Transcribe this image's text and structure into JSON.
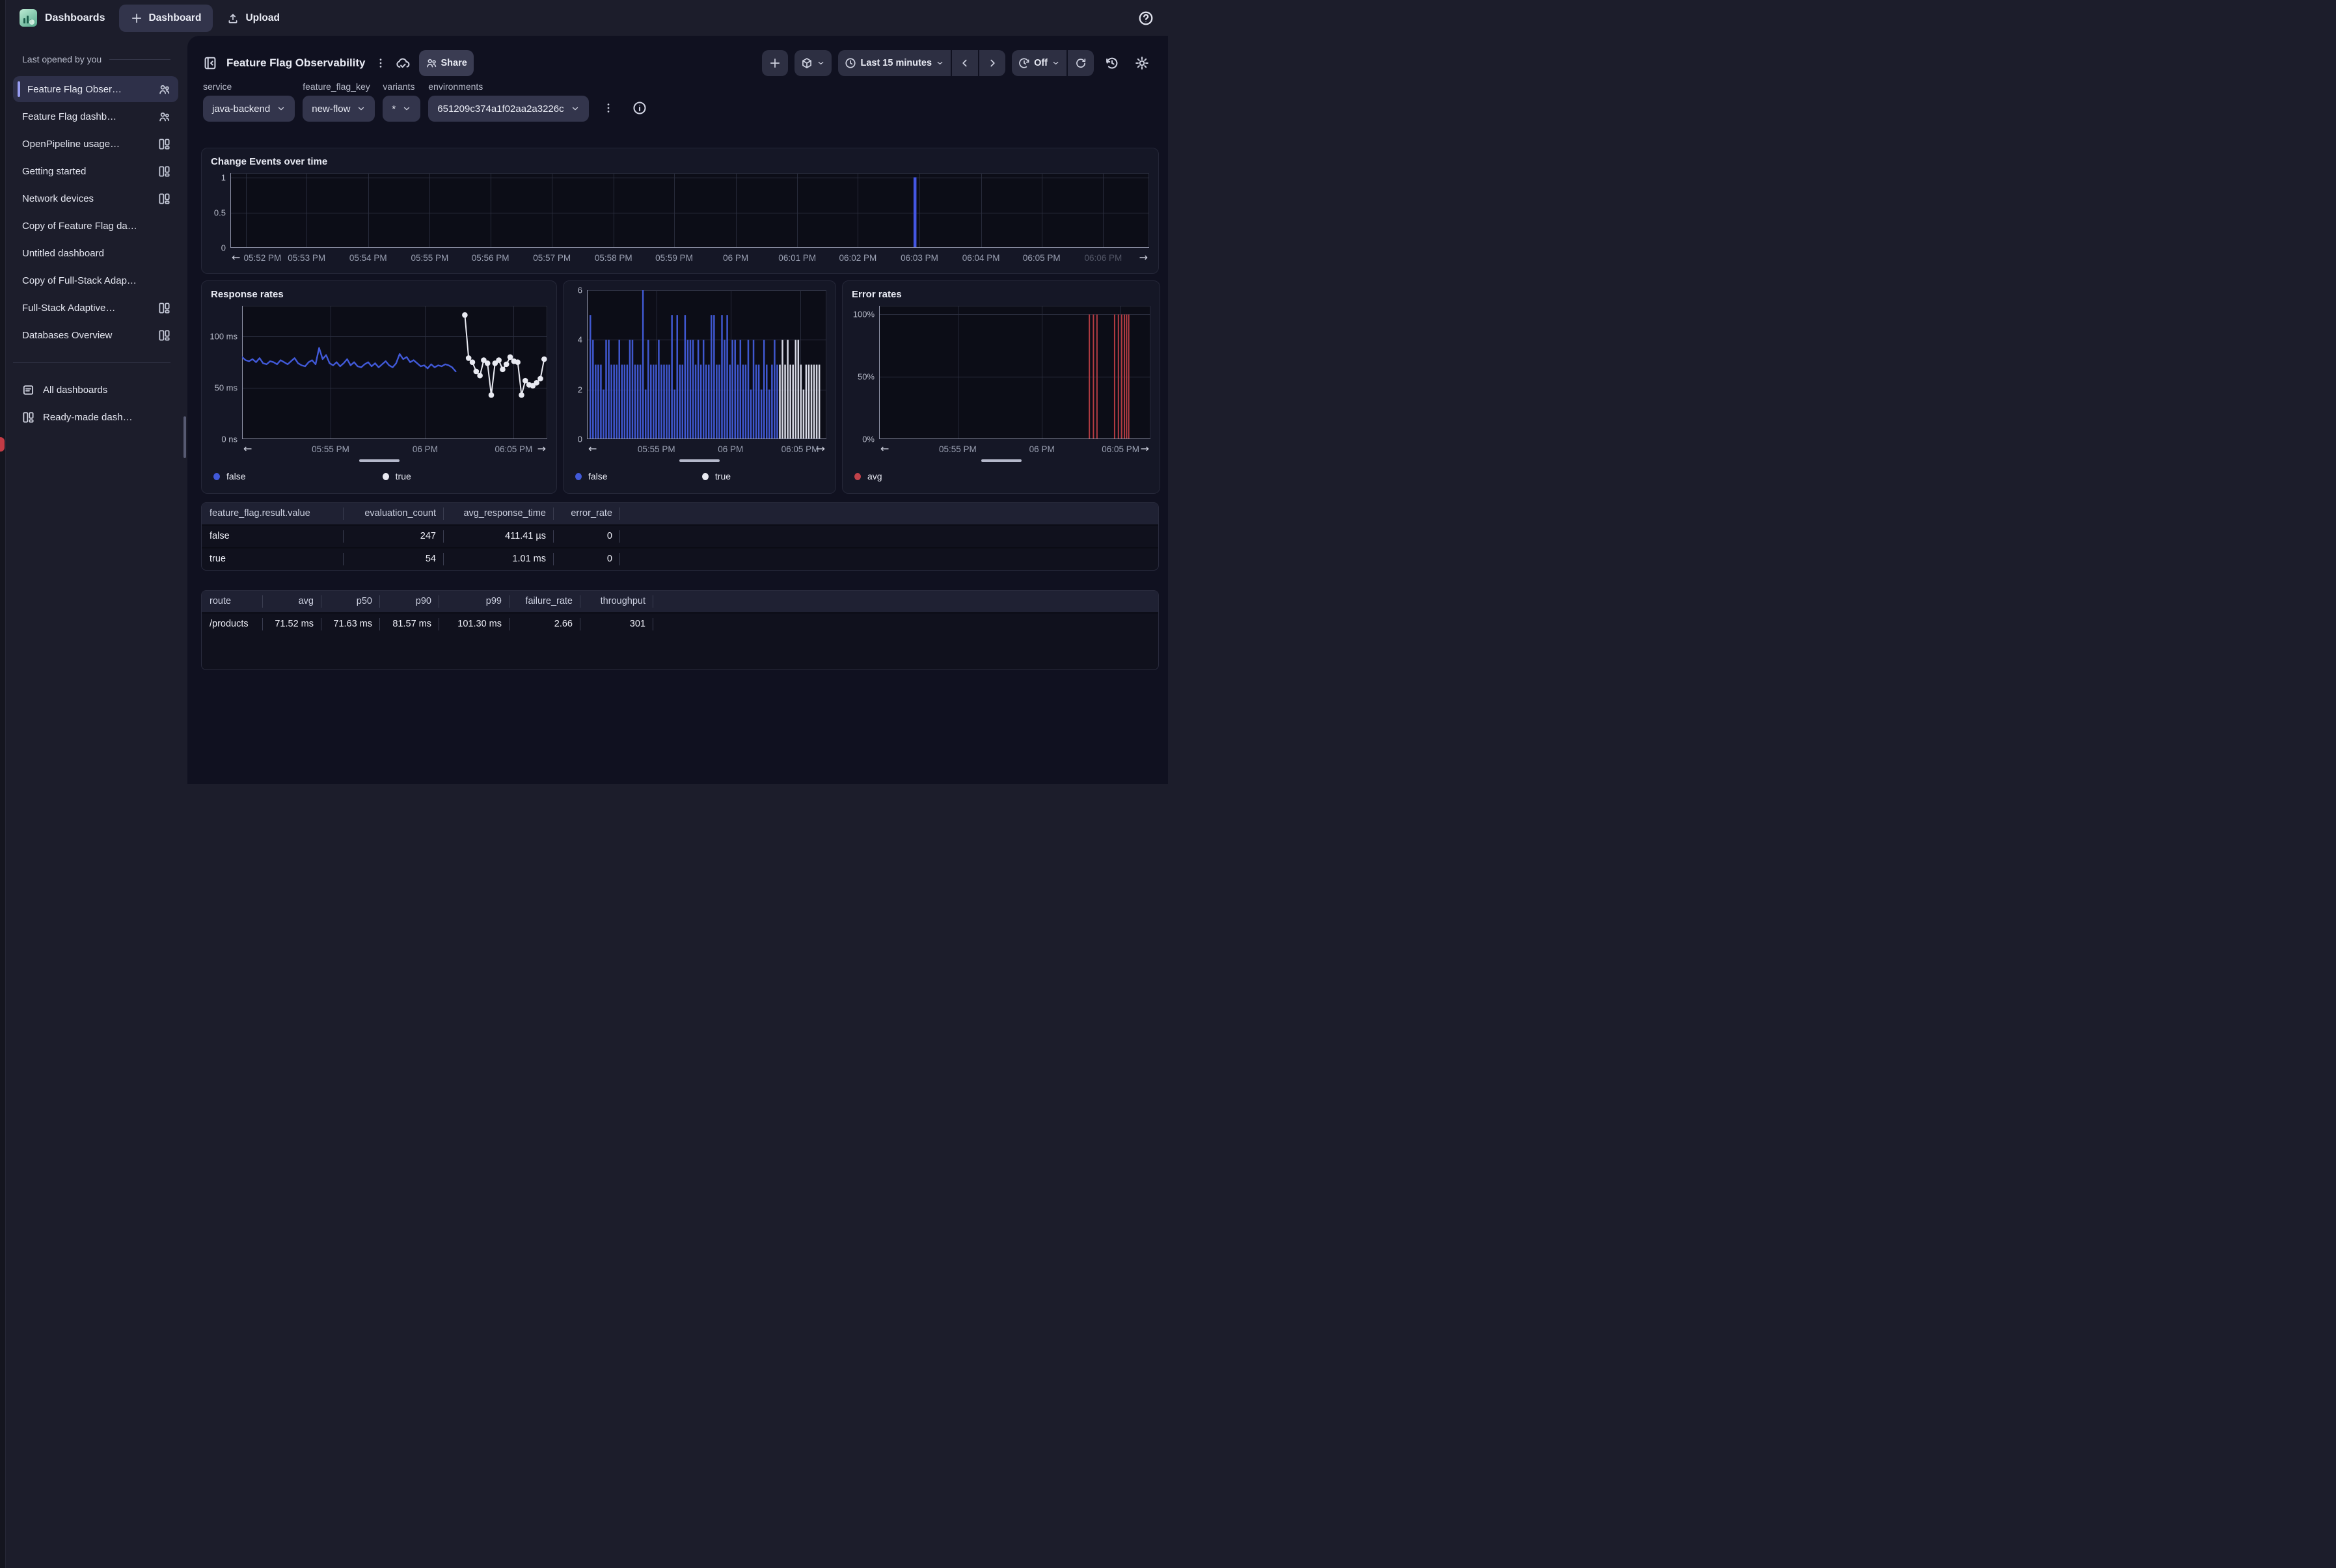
{
  "topbar": {
    "app": "Dashboards",
    "new_dashboard": "Dashboard",
    "upload": "Upload"
  },
  "sidebar": {
    "section": "Last opened by you",
    "items": [
      {
        "label": "Feature Flag Obser…",
        "icon": "people",
        "selected": true
      },
      {
        "label": "Feature Flag dashb…",
        "icon": "people",
        "selected": false
      },
      {
        "label": "OpenPipeline usage…",
        "icon": "layout",
        "selected": false
      },
      {
        "label": "Getting started",
        "icon": "layout",
        "selected": false
      },
      {
        "label": "Network devices",
        "icon": "layout",
        "selected": false
      },
      {
        "label": "Copy of Feature Flag da…",
        "icon": null,
        "selected": false
      },
      {
        "label": "Untitled dashboard",
        "icon": null,
        "selected": false
      },
      {
        "label": "Copy of Full-Stack Adap…",
        "icon": null,
        "selected": false
      },
      {
        "label": "Full-Stack Adaptive…",
        "icon": "layout",
        "selected": false
      },
      {
        "label": "Databases Overview",
        "icon": "layout",
        "selected": false
      }
    ],
    "footer": [
      {
        "label": "All dashboards",
        "icon": "doc"
      },
      {
        "label": "Ready-made dash…",
        "icon": "layout"
      }
    ]
  },
  "header": {
    "title": "Feature Flag Observability",
    "share": "Share",
    "time_range": "Last 15 minutes",
    "auto_refresh": "Off"
  },
  "filters": {
    "items": [
      {
        "label": "service",
        "value": "java-backend"
      },
      {
        "label": "feature_flag_key",
        "value": "new-flow"
      },
      {
        "label": "variants",
        "value": "*"
      },
      {
        "label": "environments",
        "value": "651209c374a1f02aa2a3226c"
      }
    ]
  },
  "panels": {
    "change_events": {
      "chart_data": {
        "type": "bar",
        "title": "Change Events over time",
        "ymax": 1.06,
        "yticks": [
          {
            "label": "1",
            "value": 1
          },
          {
            "label": "0.5",
            "value": 0.5
          },
          {
            "label": "0",
            "value": 0
          }
        ],
        "grid_x": [
          0.017,
          0.083,
          0.15,
          0.217,
          0.283,
          0.35,
          0.417,
          0.483,
          0.55,
          0.617,
          0.683,
          0.75,
          0.817,
          0.883,
          0.95
        ],
        "xticks": [
          {
            "label": "05:52 PM",
            "pos": 0.035
          },
          {
            "label": "05:53 PM",
            "pos": 0.083
          },
          {
            "label": "05:54 PM",
            "pos": 0.15
          },
          {
            "label": "05:55 PM",
            "pos": 0.217
          },
          {
            "label": "05:56 PM",
            "pos": 0.283
          },
          {
            "label": "05:57 PM",
            "pos": 0.35
          },
          {
            "label": "05:58 PM",
            "pos": 0.417
          },
          {
            "label": "05:59 PM",
            "pos": 0.483
          },
          {
            "label": "06 PM",
            "pos": 0.55
          },
          {
            "label": "06:01 PM",
            "pos": 0.617
          },
          {
            "label": "06:02 PM",
            "pos": 0.683
          },
          {
            "label": "06:03 PM",
            "pos": 0.75
          },
          {
            "label": "06:04 PM",
            "pos": 0.817
          },
          {
            "label": "06:05 PM",
            "pos": 0.883
          },
          {
            "label": "06:06 PM",
            "pos": 0.95
          }
        ],
        "events": [
          {
            "pos": 0.745,
            "value": 1
          }
        ],
        "color": "#4457e3"
      }
    },
    "response": {
      "chart_data": {
        "type": "line",
        "title": "Response rates",
        "ymax": 130,
        "yticks": [
          {
            "label": "100 ms",
            "value": 100
          },
          {
            "label": "50 ms",
            "value": 50
          },
          {
            "label": "0 ns",
            "value": 0
          }
        ],
        "xticks": [
          {
            "label": "05:55 PM",
            "pos": 0.29
          },
          {
            "label": "06 PM",
            "pos": 0.6
          },
          {
            "label": "06:05 PM",
            "pos": 0.89
          }
        ],
        "series": [
          {
            "name": "false",
            "color": "#4159d8",
            "markers": false,
            "span": [
              0.0,
              0.7
            ],
            "values": [
              80,
              77,
              76,
              78,
              75,
              79,
              74,
              73,
              76,
              75,
              73,
              77,
              75,
              73,
              76,
              79,
              74,
              72,
              71,
              75,
              77,
              73,
              89,
              78,
              82,
              74,
              72,
              75,
              71,
              74,
              78,
              72,
              75,
              71,
              70,
              73,
              75,
              71,
              74,
              70,
              73,
              76,
              72,
              70,
              74,
              83,
              78,
              80,
              75,
              77,
              74,
              71,
              72,
              69,
              73,
              70,
              72,
              71,
              73,
              72,
              70,
              66
            ]
          },
          {
            "name": "true",
            "color": "#e9eaf2",
            "markers": true,
            "span": [
              0.73,
              0.99
            ],
            "values": [
              121,
              79,
              75,
              66,
              62,
              77,
              74,
              43,
              74,
              77,
              68,
              73,
              80,
              76,
              75,
              43,
              57,
              53,
              52,
              55,
              59,
              78
            ]
          }
        ],
        "legend": [
          {
            "label": "false",
            "color": "#4159d8"
          },
          {
            "label": "true",
            "color": "#e9eaf2"
          }
        ]
      }
    },
    "eval_bars": {
      "chart_data": {
        "type": "bar",
        "title": "",
        "ymax": 6,
        "yticks": [
          {
            "label": "6",
            "value": 6
          },
          {
            "label": "4",
            "value": 4
          },
          {
            "label": "2",
            "value": 2
          },
          {
            "label": "0",
            "value": 0
          }
        ],
        "xticks": [
          {
            "label": "05:55 PM",
            "pos": 0.29
          },
          {
            "label": "06 PM",
            "pos": 0.6
          },
          {
            "label": "06:05 PM",
            "pos": 0.89
          }
        ],
        "series": [
          {
            "name": "false",
            "color": "#3f57cf",
            "values": [
              5,
              4,
              3,
              3,
              3,
              2,
              4,
              4,
              3,
              3,
              3,
              4,
              3,
              3,
              3,
              4,
              4,
              3,
              3,
              3,
              6,
              2,
              4,
              3,
              3,
              3,
              4,
              3,
              3,
              3,
              3,
              5,
              2,
              5,
              3,
              3,
              5,
              4,
              4,
              4,
              3,
              4,
              3,
              4,
              3,
              3,
              5,
              5,
              3,
              3,
              5,
              4,
              5,
              3,
              4,
              4,
              3,
              4,
              3,
              3,
              4,
              2,
              4,
              3,
              3,
              2,
              4,
              3,
              2,
              3,
              4,
              3
            ]
          },
          {
            "name": "true",
            "color": "#d5d7e3",
            "values": [
              3,
              4,
              3,
              4,
              3,
              3,
              4,
              4,
              3,
              2,
              3,
              3,
              3,
              3,
              3,
              3
            ]
          }
        ],
        "legend": [
          {
            "label": "false",
            "color": "#4159d8"
          },
          {
            "label": "true",
            "color": "#e9eaf2"
          }
        ]
      }
    },
    "error_rates": {
      "chart_data": {
        "type": "event-lines",
        "title": "Error rates",
        "ymax": 107,
        "yticks": [
          {
            "label": "100%",
            "value": 100
          },
          {
            "label": "50%",
            "value": 50
          },
          {
            "label": "0%",
            "value": 0
          }
        ],
        "xticks": [
          {
            "label": "05:55 PM",
            "pos": 0.29
          },
          {
            "label": "06 PM",
            "pos": 0.6
          },
          {
            "label": "06:05 PM",
            "pos": 0.89
          }
        ],
        "spikes": [
          0.775,
          0.79,
          0.803,
          0.868,
          0.882,
          0.894,
          0.904,
          0.912,
          0.92
        ],
        "color": "#b23b42",
        "legend": [
          {
            "label": "avg",
            "color": "#c0424a"
          }
        ]
      }
    }
  },
  "tables": {
    "flags": {
      "headers": [
        "feature_flag.result.value",
        "evaluation_count",
        "avg_response_time",
        "error_rate"
      ],
      "aligns": [
        "l",
        "r",
        "r",
        "r"
      ],
      "rows": [
        [
          "false",
          "247",
          "411.41 µs",
          "0"
        ],
        [
          "true",
          "54",
          "1.01 ms",
          "0"
        ]
      ]
    },
    "routes": {
      "headers": [
        "route",
        "avg",
        "p50",
        "p90",
        "p99",
        "failure_rate",
        "throughput"
      ],
      "aligns": [
        "l",
        "r",
        "r",
        "r",
        "r",
        "r",
        "r"
      ],
      "rows": [
        [
          "/products",
          "71.52 ms",
          "71.63 ms",
          "81.57 ms",
          "101.30 ms",
          "2.66",
          "301"
        ]
      ]
    }
  }
}
